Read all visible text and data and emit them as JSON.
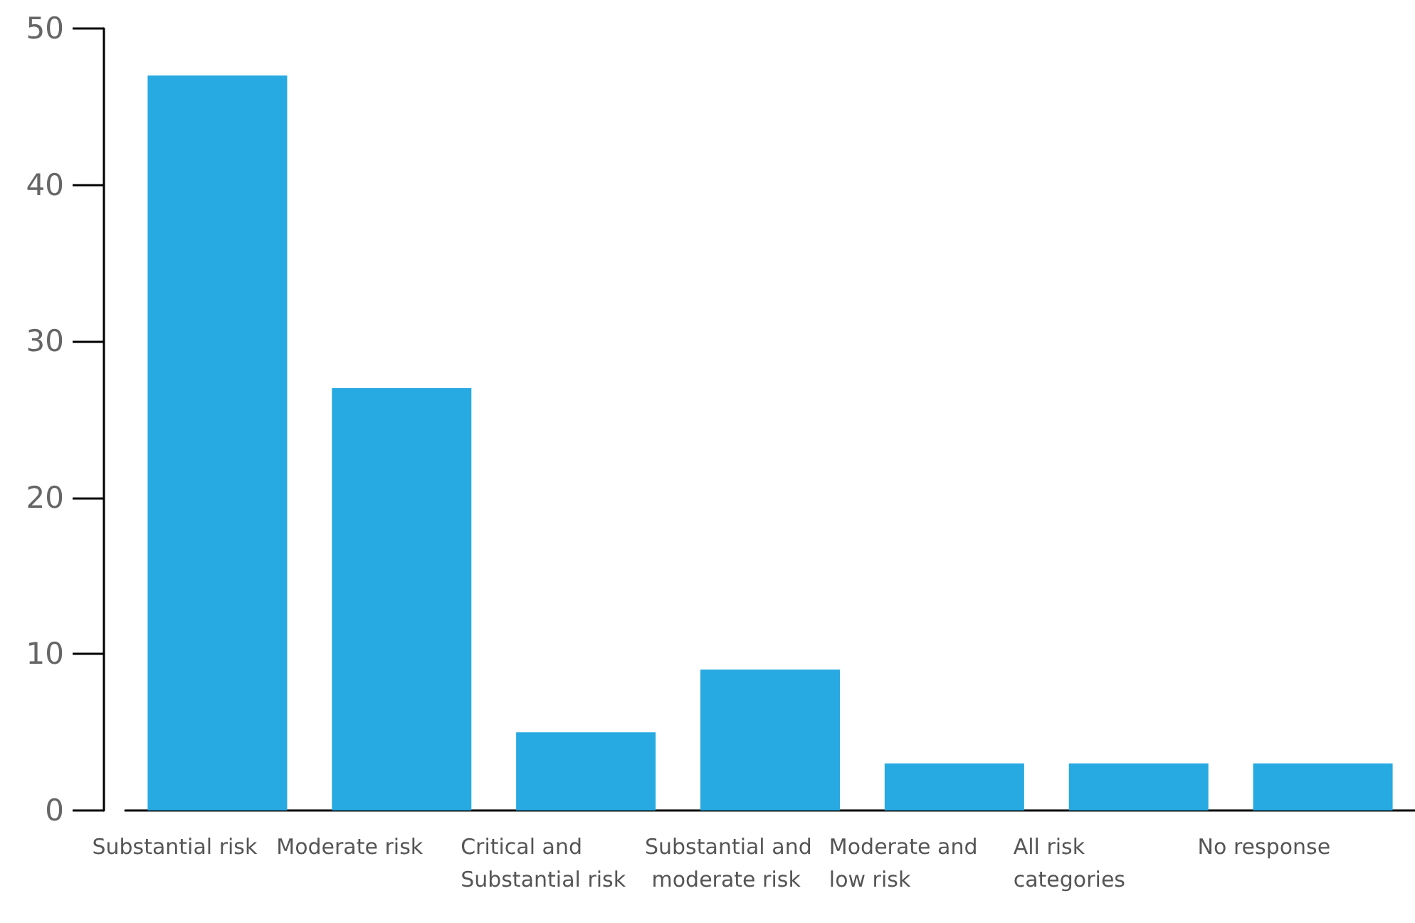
{
  "chart_data": {
    "type": "bar",
    "categories": [
      "Substantial risk",
      "Moderate risk",
      "Critical and Substantial risk",
      "Substantial and moderate risk",
      "Moderate and low risk",
      "All risk categories",
      "No response"
    ],
    "values": [
      47,
      27,
      5,
      9,
      3,
      3,
      3
    ],
    "color": "#27a9e1",
    "ylim": [
      0,
      50
    ],
    "yticks": [
      0,
      10,
      20,
      30,
      40,
      50
    ],
    "grid": false
  }
}
